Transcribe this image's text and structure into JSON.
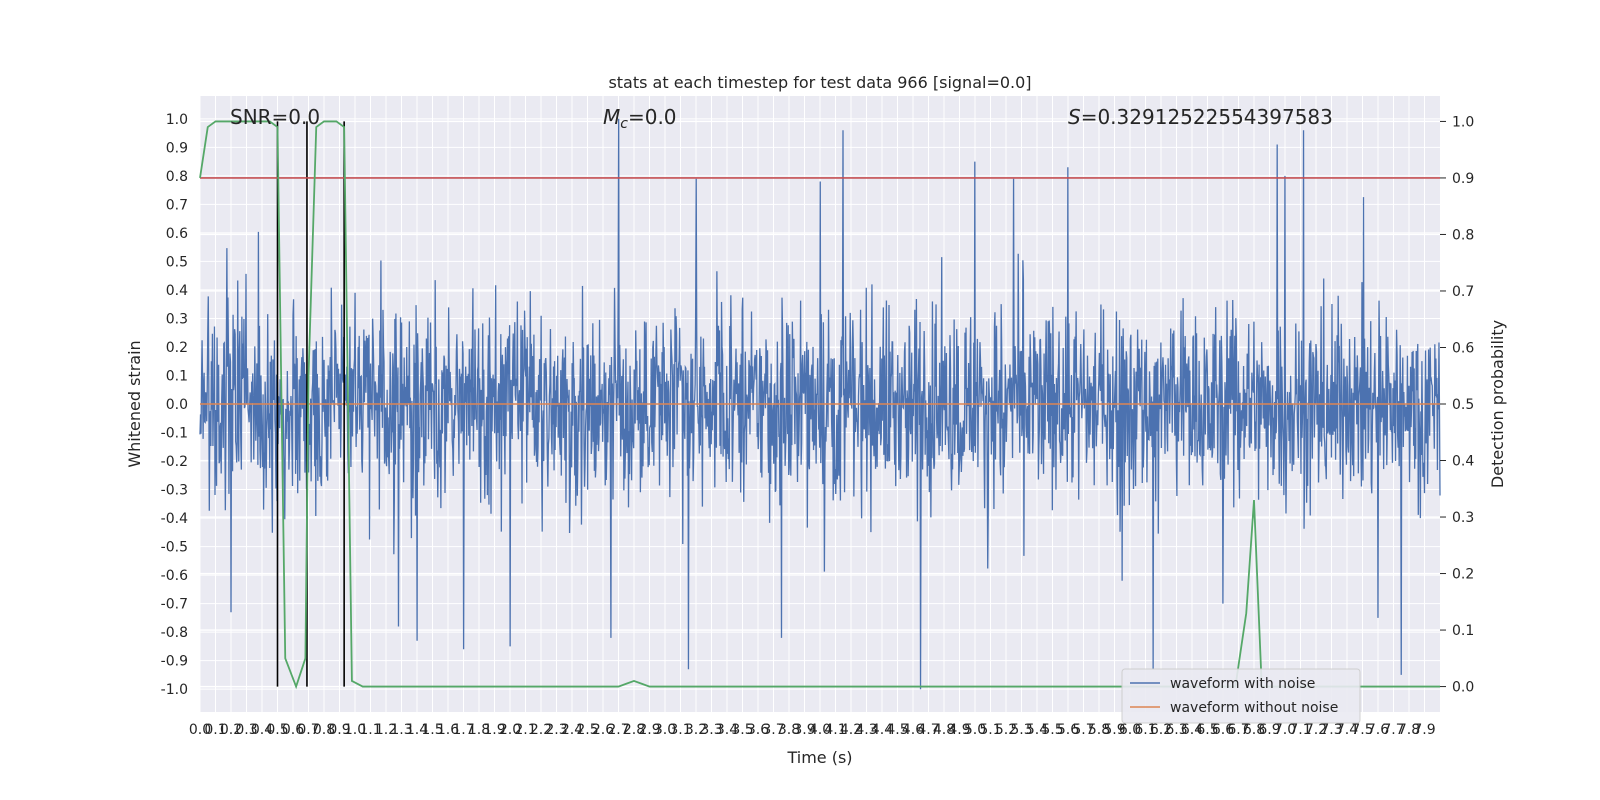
{
  "chart_data": {
    "type": "line",
    "title": "stats at each timestep for test data 966 [signal=0.0]",
    "xlabel": "Time (s)",
    "ylabel": "Whitened strain",
    "y2label": "Detection probability",
    "xlim": [
      0.0,
      8.0
    ],
    "ylim": [
      -1.08,
      1.08
    ],
    "y2lim": [
      -0.045,
      1.045
    ],
    "x_tick_labels": [
      "0.0",
      "0.1",
      "0.2",
      "0.3",
      "0.4",
      "0.5",
      "0.6",
      "0.7",
      "0.8",
      "0.9",
      "1.0",
      "1.1",
      "1.2",
      "1.3",
      "1.4",
      "1.5",
      "1.6",
      "1.7",
      "1.8",
      "1.9",
      "2.0",
      "2.1",
      "2.2",
      "2.3",
      "2.4",
      "2.5",
      "2.6",
      "2.7",
      "2.8",
      "2.9",
      "3.0",
      "3.1",
      "3.2",
      "3.3",
      "3.4",
      "3.5",
      "3.6",
      "3.7",
      "3.8",
      "3.9",
      "4.0",
      "4.1",
      "4.2",
      "4.3",
      "4.4",
      "4.5",
      "4.6",
      "4.7",
      "4.8",
      "4.9",
      "5.0",
      "5.1",
      "5.2",
      "5.3",
      "5.4",
      "5.5",
      "5.6",
      "5.7",
      "5.8",
      "5.9",
      "6.0",
      "6.1",
      "6.2",
      "6.3",
      "6.4",
      "6.5",
      "6.6",
      "6.7",
      "6.8",
      "6.9",
      "7.0",
      "7.1",
      "7.2",
      "7.3",
      "7.4",
      "7.5",
      "7.6",
      "7.7",
      "7.8",
      "7.9"
    ],
    "y_tick_labels": [
      "1.0",
      "0.9",
      "0.8",
      "0.7",
      "0.6",
      "0.5",
      "0.4",
      "0.3",
      "0.2",
      "0.1",
      "0.0",
      "-0.1",
      "-0.2",
      "-0.3",
      "-0.4",
      "-0.5",
      "-0.6",
      "-0.7",
      "-0.8",
      "-0.9",
      "-1.0"
    ],
    "y2_tick_labels": [
      "1.0",
      "0.9",
      "0.8",
      "0.7",
      "0.6",
      "0.5",
      "0.4",
      "0.3",
      "0.2",
      "0.1",
      "0.0"
    ],
    "annotations": {
      "snr": "SNR=0.0",
      "mc_symbol": "M",
      "mc_sub": "c",
      "mc_value": "=0.0",
      "s_symbol": "S",
      "s_value": "=0.32912522554397583"
    },
    "threshold": {
      "axis": "y2",
      "value": 0.9,
      "color": "#c44e52"
    },
    "vertical_markers_x": [
      0.5,
      0.69,
      0.93
    ],
    "noise_series": {
      "name": "waveform with noise",
      "color": "#4c72b0",
      "envelope_typical": 0.45,
      "peaks": [
        [
          2.7,
          1.0
        ],
        [
          4.15,
          0.96
        ],
        [
          7.12,
          0.96
        ],
        [
          6.95,
          0.91
        ],
        [
          5.0,
          0.85
        ],
        [
          5.6,
          0.83
        ],
        [
          7.0,
          0.8
        ],
        [
          5.25,
          0.79
        ],
        [
          3.2,
          0.79
        ],
        [
          4.0,
          0.78
        ],
        [
          2.0,
          0.74
        ],
        [
          4.65,
          -1.0
        ],
        [
          6.15,
          -0.93
        ],
        [
          3.15,
          -0.93
        ],
        [
          7.75,
          -0.95
        ],
        [
          2.0,
          -0.85
        ],
        [
          1.7,
          -0.86
        ],
        [
          2.65,
          -0.82
        ],
        [
          3.75,
          -0.82
        ],
        [
          1.4,
          -0.83
        ],
        [
          1.28,
          -0.78
        ],
        [
          0.2,
          -0.73
        ],
        [
          6.6,
          -0.7
        ],
        [
          7.6,
          -0.75
        ],
        [
          5.95,
          -0.62
        ]
      ]
    },
    "clean_series": {
      "name": "waveform without noise",
      "color": "#dd8452",
      "values_constant": 0.0
    },
    "probability_series": {
      "color": "#55a868",
      "x": [
        0.0,
        0.05,
        0.1,
        0.2,
        0.3,
        0.4,
        0.45,
        0.5,
        0.55,
        0.62,
        0.68,
        0.7,
        0.75,
        0.8,
        0.88,
        0.93,
        0.98,
        1.05,
        1.1,
        1.2,
        2.0,
        2.7,
        2.75,
        2.8,
        2.85,
        2.9,
        3.0,
        4.0,
        5.0,
        6.0,
        6.5,
        6.68,
        6.75,
        6.8,
        6.85,
        7.0,
        7.5,
        8.0
      ],
      "y": [
        0.9,
        0.99,
        1.0,
        1.0,
        1.0,
        1.0,
        1.0,
        0.99,
        0.05,
        0.0,
        0.05,
        0.55,
        0.99,
        1.0,
        1.0,
        0.99,
        0.01,
        0.0,
        0.0,
        0.0,
        0.0,
        0.0,
        0.005,
        0.01,
        0.005,
        0.0,
        0.0,
        0.0,
        0.0,
        0.0,
        0.0,
        0.0,
        0.13,
        0.33,
        0.0,
        0.0,
        0.0,
        0.0
      ]
    },
    "grid": true,
    "legend": {
      "position": "lower right",
      "entries": [
        {
          "label": "waveform with noise",
          "color": "#4c72b0"
        },
        {
          "label": "waveform without noise",
          "color": "#dd8452"
        }
      ]
    },
    "colors": {
      "axes_bg": "#eaeaf2",
      "grid": "#ffffff",
      "marker_line": "#000000",
      "text": "#262626"
    }
  }
}
